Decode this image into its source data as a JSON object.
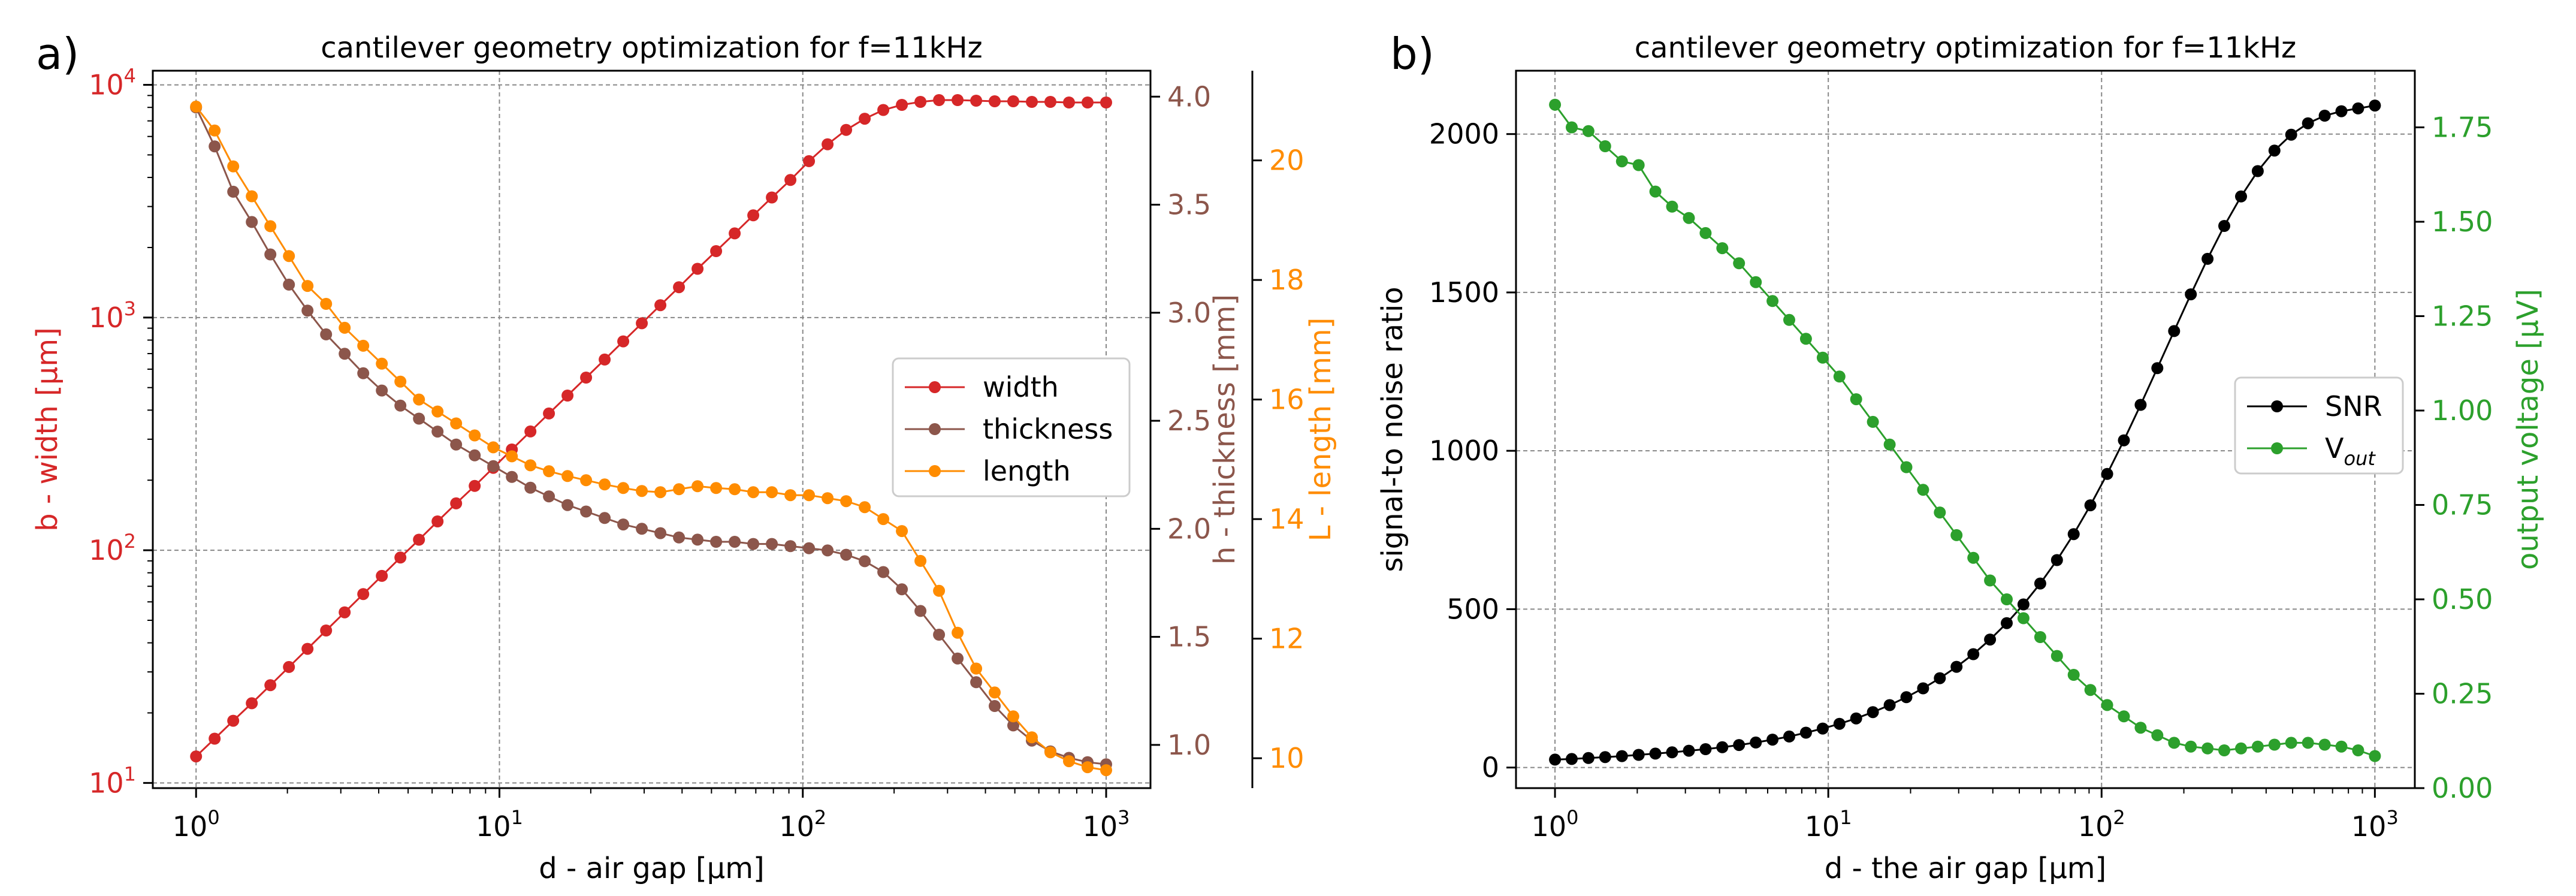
{
  "panel_labels": {
    "a": "a)",
    "b": "b)"
  },
  "chart_data": [
    {
      "type": "line",
      "title": "cantilever geometry optimization for f=11kHz",
      "xlabel": "d - air gap [µm]",
      "xscale": "log",
      "xlim": [
        0.72,
        1400
      ],
      "x_tick_labels": [
        {
          "base": "10",
          "exp": "0"
        },
        {
          "base": "10",
          "exp": "1"
        },
        {
          "base": "10",
          "exp": "2"
        },
        {
          "base": "10",
          "exp": "3"
        }
      ],
      "y_axes": [
        {
          "label": "b - width [µm]",
          "color": "#d62728",
          "scale": "log",
          "lim": [
            9.5,
            11500
          ],
          "side": "left",
          "tick_labels": [
            {
              "base": "10",
              "exp": "1"
            },
            {
              "base": "10",
              "exp": "2"
            },
            {
              "base": "10",
              "exp": "3"
            },
            {
              "base": "10",
              "exp": "4"
            }
          ]
        },
        {
          "label": "h - thickness [mm]",
          "color": "#8c564b",
          "scale": "linear",
          "lim": [
            0.8,
            4.12
          ],
          "side": "right",
          "tick_labels": [
            "1.0",
            "1.5",
            "2.0",
            "2.5",
            "3.0",
            "3.5",
            "4.0"
          ]
        },
        {
          "label": "L - length [mm]",
          "color": "#ff8c00",
          "scale": "linear",
          "lim": [
            9.5,
            21.5
          ],
          "side": "right-outer",
          "tick_labels": [
            "10",
            "12",
            "14",
            "16",
            "18",
            "20"
          ]
        }
      ],
      "legend": {
        "position": "center-right",
        "entries": [
          "width",
          "thickness",
          "length"
        ]
      },
      "series": [
        {
          "name": "width",
          "axis": 0,
          "color": "#d62728",
          "x": "logspace(0,3,50)",
          "values": [
            13.0,
            15.5,
            18.5,
            22.0,
            26.3,
            31.5,
            37.7,
            45.2,
            54.1,
            64.8,
            77.6,
            93.0,
            111,
            133,
            159,
            189,
            226,
            271,
            324,
            387,
            462,
            552,
            660,
            790,
            945,
            1130,
            1350,
            1620,
            1930,
            2300,
            2750,
            3280,
            3900,
            4700,
            5550,
            6400,
            7150,
            7800,
            8200,
            8450,
            8600,
            8600,
            8550,
            8500,
            8500,
            8450,
            8450,
            8400,
            8400,
            8400
          ]
        },
        {
          "name": "thickness",
          "axis": 1,
          "color": "#8c564b",
          "x": "logspace(0,3,50)",
          "values": [
            3.95,
            3.77,
            3.56,
            3.42,
            3.27,
            3.13,
            3.01,
            2.9,
            2.81,
            2.72,
            2.64,
            2.57,
            2.51,
            2.45,
            2.39,
            2.34,
            2.29,
            2.24,
            2.19,
            2.15,
            2.11,
            2.08,
            2.05,
            2.02,
            2.0,
            1.98,
            1.96,
            1.95,
            1.94,
            1.94,
            1.93,
            1.93,
            1.92,
            1.91,
            1.9,
            1.88,
            1.85,
            1.8,
            1.72,
            1.62,
            1.51,
            1.4,
            1.29,
            1.18,
            1.09,
            1.02,
            0.97,
            0.94,
            0.92,
            0.91
          ]
        },
        {
          "name": "length",
          "axis": 2,
          "color": "#ff8c00",
          "x": "logspace(0,3,50)",
          "values": [
            20.9,
            20.5,
            19.9,
            19.4,
            18.9,
            18.4,
            17.9,
            17.6,
            17.2,
            16.9,
            16.6,
            16.3,
            16.0,
            15.8,
            15.6,
            15.4,
            15.2,
            15.05,
            14.9,
            14.8,
            14.72,
            14.65,
            14.58,
            14.52,
            14.47,
            14.45,
            14.5,
            14.55,
            14.52,
            14.5,
            14.45,
            14.45,
            14.4,
            14.4,
            14.35,
            14.3,
            14.2,
            14.0,
            13.8,
            13.3,
            12.8,
            12.1,
            11.5,
            11.1,
            10.7,
            10.35,
            10.1,
            9.95,
            9.85,
            9.8
          ]
        }
      ]
    },
    {
      "type": "line",
      "title": "cantilever geometry optimization for f=11kHz",
      "xlabel": "d - the air gap [µm]",
      "xscale": "log",
      "xlim": [
        0.72,
        1400
      ],
      "x_tick_labels": [
        {
          "base": "10",
          "exp": "0"
        },
        {
          "base": "10",
          "exp": "1"
        },
        {
          "base": "10",
          "exp": "2"
        },
        {
          "base": "10",
          "exp": "3"
        }
      ],
      "y_axes": [
        {
          "label": "signal-to noise ratio",
          "color": "#000000",
          "scale": "linear",
          "lim": [
            -65,
            2200
          ],
          "side": "left",
          "tick_labels": [
            "0",
            "500",
            "1000",
            "1500",
            "2000"
          ]
        },
        {
          "label": "output voltage [µV]",
          "color": "#2ca02c",
          "scale": "linear",
          "lim": [
            0.0,
            1.9
          ],
          "side": "right",
          "tick_labels": [
            "0.00",
            "0.25",
            "0.50",
            "0.75",
            "1.00",
            "1.25",
            "1.50",
            "1.75"
          ]
        }
      ],
      "legend": {
        "position": "center-right",
        "entries": [
          "SNR",
          "V_out"
        ],
        "entry_labels": [
          {
            "base": "SNR",
            "sub": ""
          },
          {
            "base": "V",
            "sub": "out"
          }
        ]
      },
      "series": [
        {
          "name": "SNR",
          "axis": 0,
          "color": "#000000",
          "x": "logspace(0,3,50)",
          "values": [
            25,
            27,
            30,
            33,
            36,
            40,
            44,
            48,
            53,
            58,
            64,
            71,
            79,
            88,
            98,
            110,
            123,
            138,
            155,
            175,
            197,
            222,
            250,
            282,
            318,
            358,
            404,
            456,
            515,
            581,
            655,
            737,
            828,
            927,
            1033,
            1145,
            1261,
            1378,
            1494,
            1606,
            1710,
            1803,
            1883,
            1948,
            1998,
            2034,
            2058,
            2072,
            2081,
            2090
          ]
        },
        {
          "name": "V_out",
          "axis": 1,
          "color": "#2ca02c",
          "x": "logspace(0,3,50)",
          "values": [
            1.81,
            1.75,
            1.74,
            1.7,
            1.66,
            1.65,
            1.58,
            1.54,
            1.51,
            1.47,
            1.43,
            1.39,
            1.34,
            1.29,
            1.24,
            1.19,
            1.14,
            1.09,
            1.03,
            0.97,
            0.91,
            0.85,
            0.79,
            0.73,
            0.67,
            0.61,
            0.55,
            0.5,
            0.45,
            0.4,
            0.35,
            0.3,
            0.26,
            0.22,
            0.19,
            0.16,
            0.14,
            0.12,
            0.11,
            0.105,
            0.1,
            0.105,
            0.11,
            0.115,
            0.12,
            0.12,
            0.115,
            0.11,
            0.1,
            0.085
          ]
        }
      ]
    }
  ]
}
